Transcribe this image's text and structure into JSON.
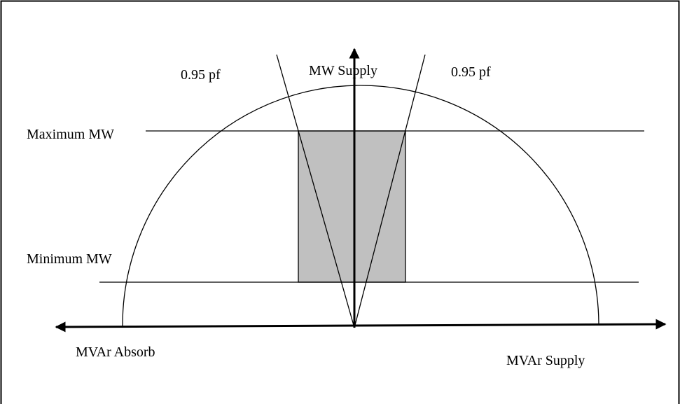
{
  "labels": {
    "y_axis": "MW Supply",
    "pf_left": "0.95 pf",
    "pf_right": "0.95 pf",
    "max_mw": "Maximum MW",
    "min_mw": "Minimum MW",
    "x_left": "MVAr Absorb",
    "x_right": "MVAr Supply"
  }
}
